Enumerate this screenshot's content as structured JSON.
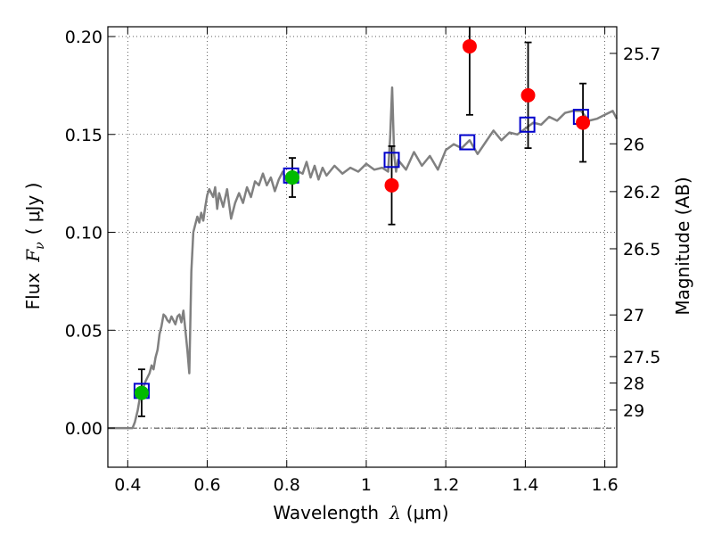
{
  "chart_data": {
    "type": "scatter",
    "xlabel": "Wavelength",
    "xlabel_symbol": "λ",
    "xlabel_unit": "(μm)",
    "ylabel": "Flux",
    "ylabel_symbol": "F",
    "ylabel_subscript": "ν",
    "ylabel_unit": "( μJy )",
    "y2label": "Magnitude (AB)",
    "xlim": [
      0.35,
      1.63
    ],
    "ylim": [
      -0.02,
      0.205
    ],
    "grid": true,
    "x_ticks": [
      0.4,
      0.6,
      0.8,
      1.0,
      1.2,
      1.4,
      1.6
    ],
    "x_tick_labels": [
      "0.4",
      "0.6",
      "0.8",
      "1",
      "1.2",
      "1.4",
      "1.6"
    ],
    "y_ticks": [
      0.0,
      0.05,
      0.1,
      0.15,
      0.2
    ],
    "y_tick_labels": [
      "0.00",
      "0.05",
      "0.10",
      "0.15",
      "0.20"
    ],
    "magnitude_ticks": [
      {
        "label": "25.7",
        "flux": 0.1914
      },
      {
        "label": "26",
        "flux": 0.1452
      },
      {
        "label": "26.2",
        "flux": 0.1208
      },
      {
        "label": "26.5",
        "flux": 0.0916
      },
      {
        "label": "27",
        "flux": 0.0578
      },
      {
        "label": "27.5",
        "flux": 0.0365
      },
      {
        "label": "28",
        "flux": 0.023
      },
      {
        "label": "29",
        "flux": 0.0092
      }
    ],
    "series": [
      {
        "name": "",
        "kind": "line",
        "color": "#808080",
        "x": [
          0.35,
          0.412,
          0.418,
          0.425,
          0.43,
          0.435,
          0.44,
          0.445,
          0.45,
          0.455,
          0.46,
          0.465,
          0.47,
          0.475,
          0.48,
          0.485,
          0.49,
          0.495,
          0.5,
          0.505,
          0.51,
          0.515,
          0.52,
          0.525,
          0.53,
          0.535,
          0.54,
          0.545,
          0.55,
          0.555,
          0.56,
          0.565,
          0.57,
          0.575,
          0.58,
          0.585,
          0.59,
          0.595,
          0.6,
          0.605,
          0.61,
          0.615,
          0.62,
          0.625,
          0.63,
          0.64,
          0.65,
          0.66,
          0.67,
          0.68,
          0.69,
          0.7,
          0.71,
          0.72,
          0.73,
          0.74,
          0.75,
          0.76,
          0.77,
          0.78,
          0.79,
          0.8,
          0.81,
          0.82,
          0.83,
          0.84,
          0.85,
          0.86,
          0.87,
          0.88,
          0.89,
          0.9,
          0.92,
          0.94,
          0.96,
          0.98,
          1.0,
          1.02,
          1.04,
          1.055,
          1.06,
          1.065,
          1.07,
          1.075,
          1.08,
          1.1,
          1.12,
          1.14,
          1.16,
          1.18,
          1.2,
          1.22,
          1.24,
          1.26,
          1.28,
          1.3,
          1.32,
          1.34,
          1.36,
          1.38,
          1.4,
          1.42,
          1.44,
          1.46,
          1.48,
          1.5,
          1.52,
          1.54,
          1.56,
          1.58,
          1.6,
          1.62,
          1.63
        ],
        "y": [
          0.0,
          0.0,
          0.003,
          0.009,
          0.015,
          0.019,
          0.021,
          0.024,
          0.026,
          0.028,
          0.032,
          0.03,
          0.036,
          0.04,
          0.048,
          0.052,
          0.058,
          0.057,
          0.055,
          0.054,
          0.057,
          0.055,
          0.053,
          0.057,
          0.058,
          0.054,
          0.06,
          0.05,
          0.04,
          0.028,
          0.08,
          0.1,
          0.104,
          0.108,
          0.105,
          0.11,
          0.106,
          0.113,
          0.119,
          0.122,
          0.12,
          0.118,
          0.123,
          0.112,
          0.12,
          0.113,
          0.122,
          0.107,
          0.115,
          0.12,
          0.115,
          0.123,
          0.118,
          0.126,
          0.124,
          0.13,
          0.124,
          0.128,
          0.121,
          0.127,
          0.131,
          0.126,
          0.13,
          0.128,
          0.131,
          0.13,
          0.136,
          0.128,
          0.134,
          0.127,
          0.133,
          0.129,
          0.134,
          0.13,
          0.133,
          0.131,
          0.135,
          0.132,
          0.133,
          0.131,
          0.148,
          0.174,
          0.14,
          0.131,
          0.137,
          0.132,
          0.141,
          0.134,
          0.139,
          0.132,
          0.142,
          0.145,
          0.143,
          0.147,
          0.14,
          0.146,
          0.152,
          0.147,
          0.151,
          0.15,
          0.153,
          0.156,
          0.155,
          0.159,
          0.157,
          0.161,
          0.162,
          0.162,
          0.157,
          0.158,
          0.16,
          0.162,
          0.158
        ]
      },
      {
        "name": "",
        "kind": "squares",
        "color": "#0000cc",
        "x": [
          0.435,
          0.811,
          1.064,
          1.254,
          1.405,
          1.54
        ],
        "y": [
          0.019,
          0.129,
          0.137,
          0.146,
          0.155,
          0.159
        ]
      },
      {
        "name": "",
        "kind": "circles",
        "color": "#00bb00",
        "x": [
          0.435,
          0.814
        ],
        "y": [
          0.018,
          0.128
        ],
        "err": [
          0.012,
          0.01
        ]
      },
      {
        "name": "",
        "kind": "circles",
        "color": "#ff0000",
        "x": [
          1.064,
          1.26,
          1.407,
          1.545
        ],
        "y": [
          0.124,
          0.195,
          0.17,
          0.156
        ],
        "err": [
          0.02,
          0.035,
          0.027,
          0.02
        ]
      }
    ]
  }
}
